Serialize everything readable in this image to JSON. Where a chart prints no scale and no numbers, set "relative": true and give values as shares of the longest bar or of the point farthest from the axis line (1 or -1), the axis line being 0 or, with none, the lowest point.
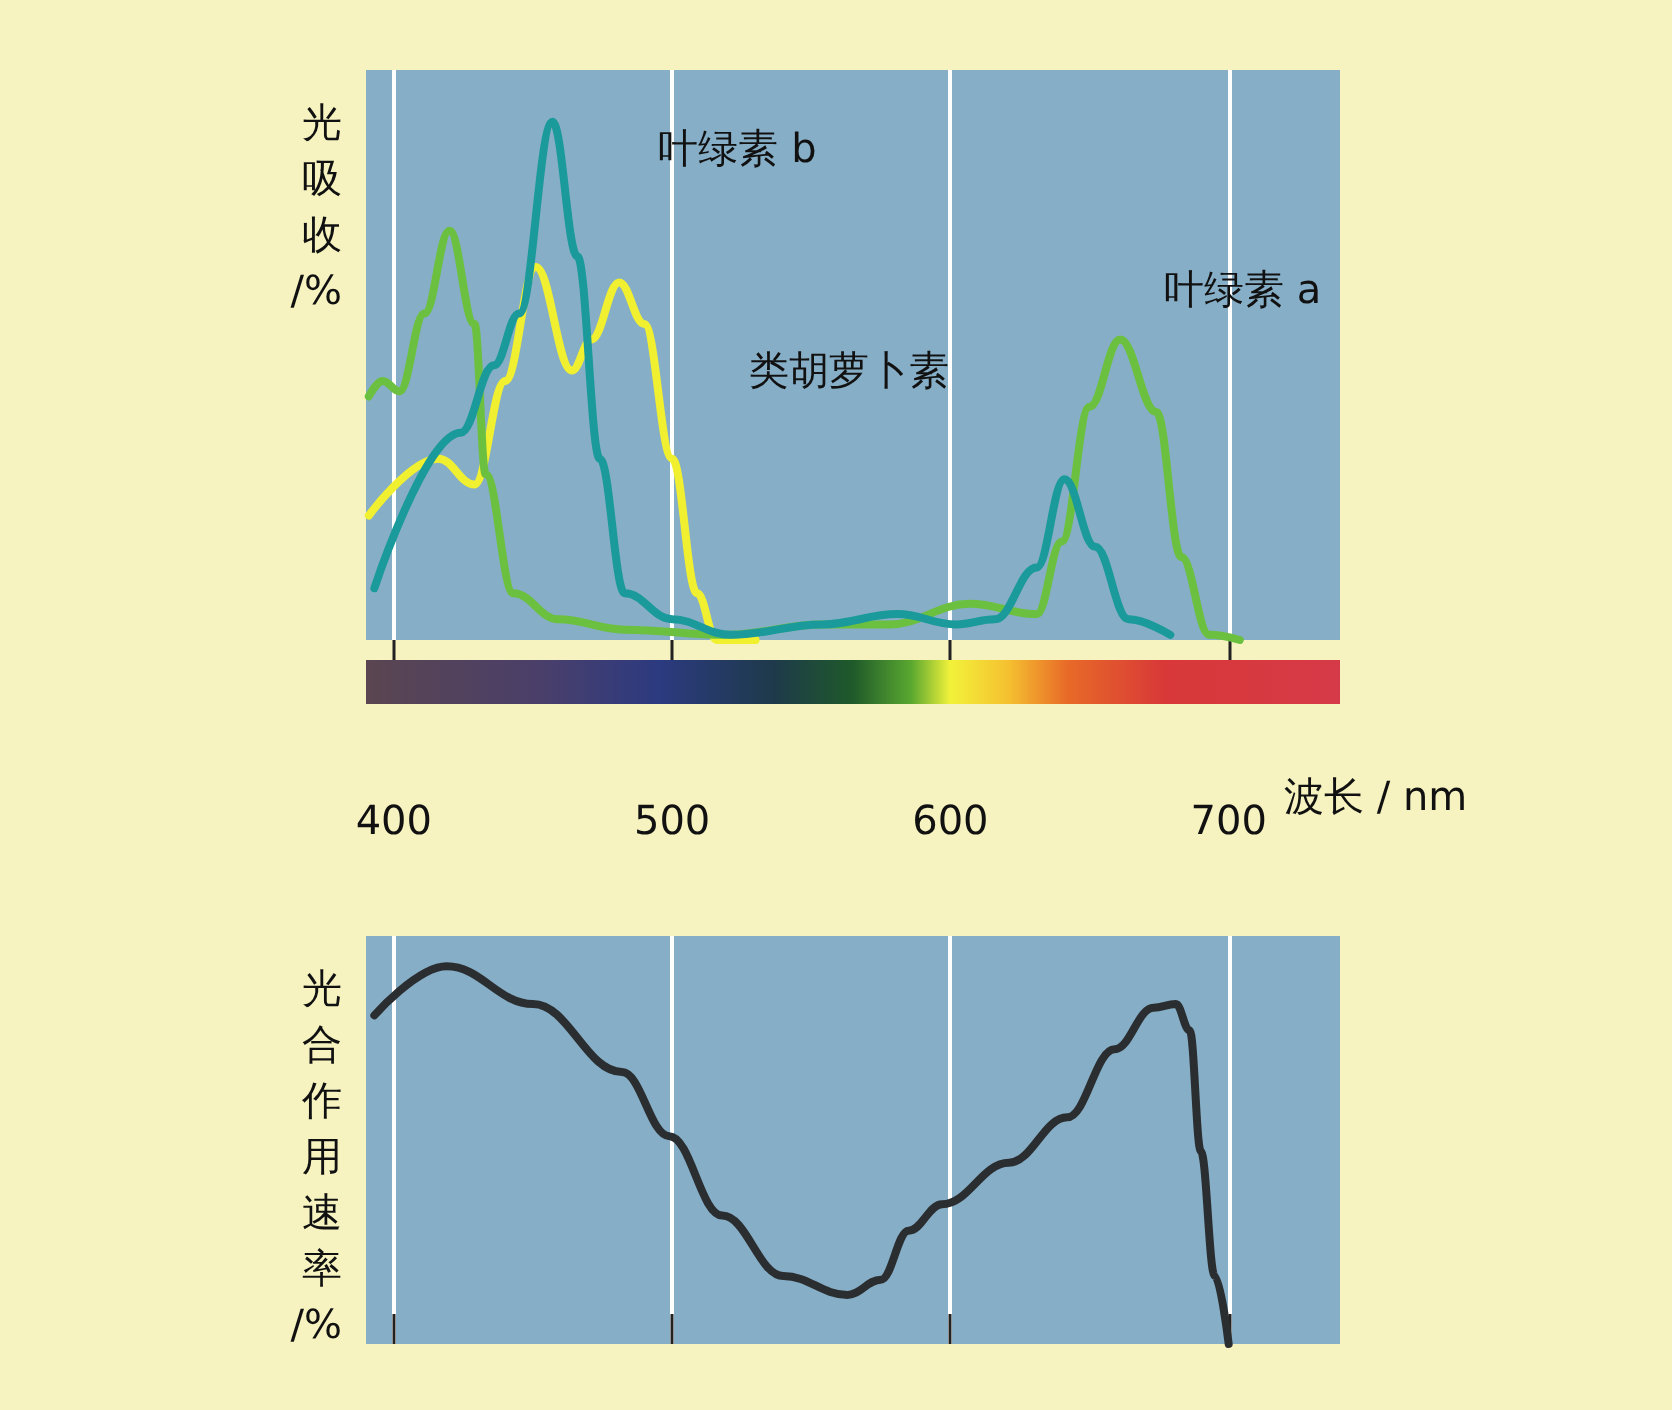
{
  "chart_data": [
    {
      "type": "line",
      "ylabel": "光吸收/%",
      "xlabel": "波长 / nm",
      "relative": true,
      "xlim": [
        390,
        740
      ],
      "xticks": [
        400,
        500,
        600,
        700
      ],
      "grid": "x",
      "marker": "none",
      "tick_labels": "x",
      "series": [
        {
          "name": "叶绿素 b",
          "color": "#1a9a9a",
          "x": [
            393,
            424,
            436,
            445,
            457,
            466,
            474,
            483,
            500,
            521,
            554,
            581,
            602,
            616,
            631,
            641,
            652,
            664,
            679
          ],
          "values": [
            0.1,
            0.4,
            0.53,
            0.63,
            1,
            0.74,
            0.35,
            0.09,
            0.04,
            0.01,
            0.03,
            0.05,
            0.03,
            0.04,
            0.14,
            0.31,
            0.18,
            0.04,
            0.01
          ]
        },
        {
          "name": "叶绿素 a",
          "color": "#6cc040",
          "x": [
            391,
            396,
            402,
            411,
            420,
            429,
            433,
            443,
            459,
            483,
            519,
            554,
            578,
            607,
            631,
            640,
            650,
            661,
            674,
            683,
            693,
            704
          ],
          "values": [
            0.47,
            0.5,
            0.48,
            0.63,
            0.79,
            0.61,
            0.32,
            0.09,
            0.04,
            0.02,
            0.01,
            0.03,
            0.03,
            0.07,
            0.05,
            0.19,
            0.45,
            0.58,
            0.44,
            0.16,
            0.01,
            0
          ]
        },
        {
          "name": "类胡萝卜素",
          "color": "#f0f030",
          "x": [
            391,
            416,
            429,
            440,
            451,
            464,
            471,
            481,
            490,
            500,
            509,
            516,
            530
          ],
          "values": [
            0.24,
            0.35,
            0.3,
            0.5,
            0.72,
            0.52,
            0.58,
            0.69,
            0.61,
            0.35,
            0.09,
            0,
            0
          ]
        }
      ]
    },
    {
      "type": "line",
      "ylabel": "光合作用速率/%",
      "relative": true,
      "xlim": [
        390,
        740
      ],
      "xticks": [
        400,
        500,
        600,
        700
      ],
      "grid": "x",
      "marker": "none",
      "tick_labels": false,
      "series": [
        {
          "color": "#2a2e30",
          "x": [
            393,
            419,
            450,
            482,
            499,
            518,
            540,
            563,
            575,
            585,
            597,
            621,
            642,
            659,
            673,
            681,
            686,
            690,
            695,
            700
          ],
          "values": [
            0.87,
            1,
            0.9,
            0.72,
            0.55,
            0.34,
            0.18,
            0.13,
            0.17,
            0.3,
            0.37,
            0.48,
            0.6,
            0.78,
            0.89,
            0.9,
            0.83,
            0.51,
            0.18,
            0
          ]
        }
      ]
    }
  ]
}
